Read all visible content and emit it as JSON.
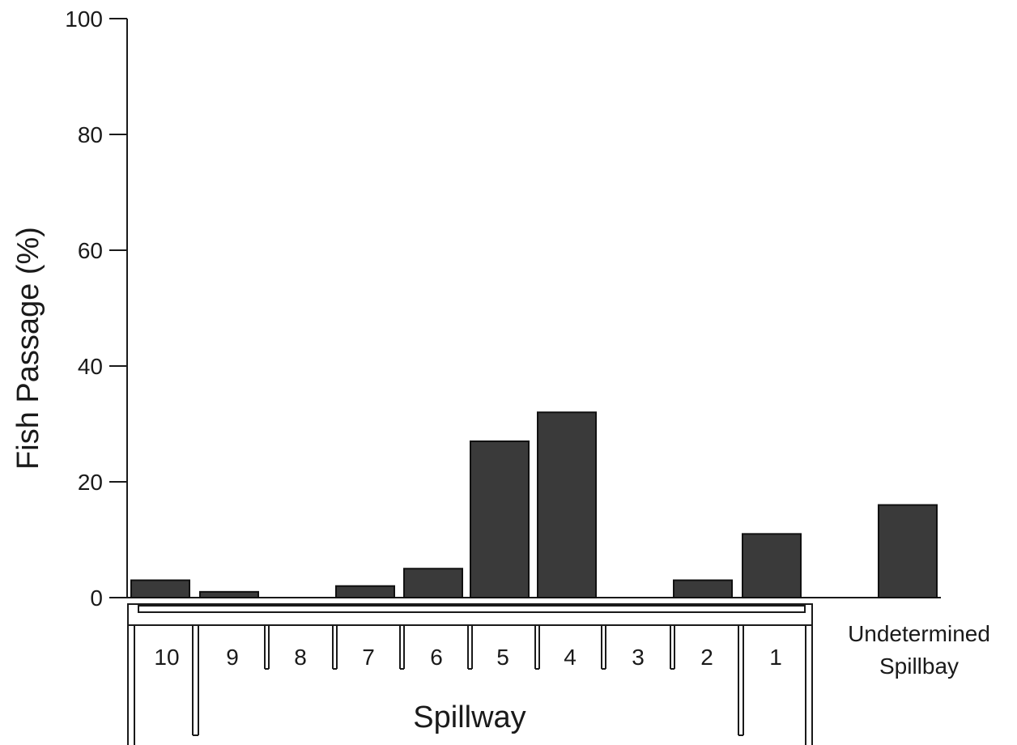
{
  "chart_data": {
    "type": "bar",
    "categories": [
      "10",
      "9",
      "8",
      "7",
      "6",
      "5",
      "4",
      "3",
      "2",
      "1",
      "Undetermined Spillbay"
    ],
    "values": [
      3,
      1,
      0,
      2,
      5,
      27,
      32,
      0,
      3,
      11,
      16
    ],
    "title": "",
    "xlabel": "Spillway",
    "ylabel": "Fish Passage (%)",
    "ylim": [
      0,
      100
    ],
    "yticks": [
      "0",
      "20",
      "40",
      "60",
      "80",
      "100"
    ],
    "extra_category_label": [
      "Undetermined",
      "Spillbay"
    ],
    "bar_color": "#3a3a3a",
    "grid": false
  }
}
